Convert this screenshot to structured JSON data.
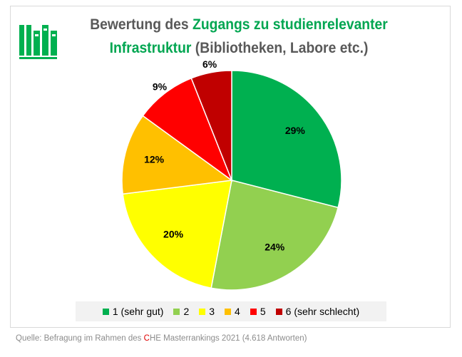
{
  "chart_data": {
    "type": "pie",
    "title_parts": {
      "t1": "Bewertung des ",
      "t2": "Zugangs zu studienrelevanter",
      "t3": "Infrastruktur",
      "t4": " (Bibliotheken, Labore etc.)"
    },
    "slices": [
      {
        "label": "1 (sehr gut)",
        "value": 29,
        "display": "29%",
        "color": "#00b050"
      },
      {
        "label": "2",
        "value": 24,
        "display": "24%",
        "color": "#92d050"
      },
      {
        "label": "3",
        "value": 20,
        "display": "20%",
        "color": "#ffff00"
      },
      {
        "label": "4",
        "value": 12,
        "display": "12%",
        "color": "#ffc000"
      },
      {
        "label": "5",
        "value": 9,
        "display": "9%",
        "color": "#ff0000"
      },
      {
        "label": "6 (sehr schlecht)",
        "value": 6,
        "display": "6%",
        "color": "#c00000"
      }
    ],
    "legend_position": "bottom"
  },
  "logo": {
    "icon": "books-icon",
    "color": "#00b050"
  },
  "source": {
    "before": "Quelle: Befragung im Rahmen des ",
    "c": "C",
    "after": "HE Masterrankings 2021 (4.618 Antworten)"
  }
}
